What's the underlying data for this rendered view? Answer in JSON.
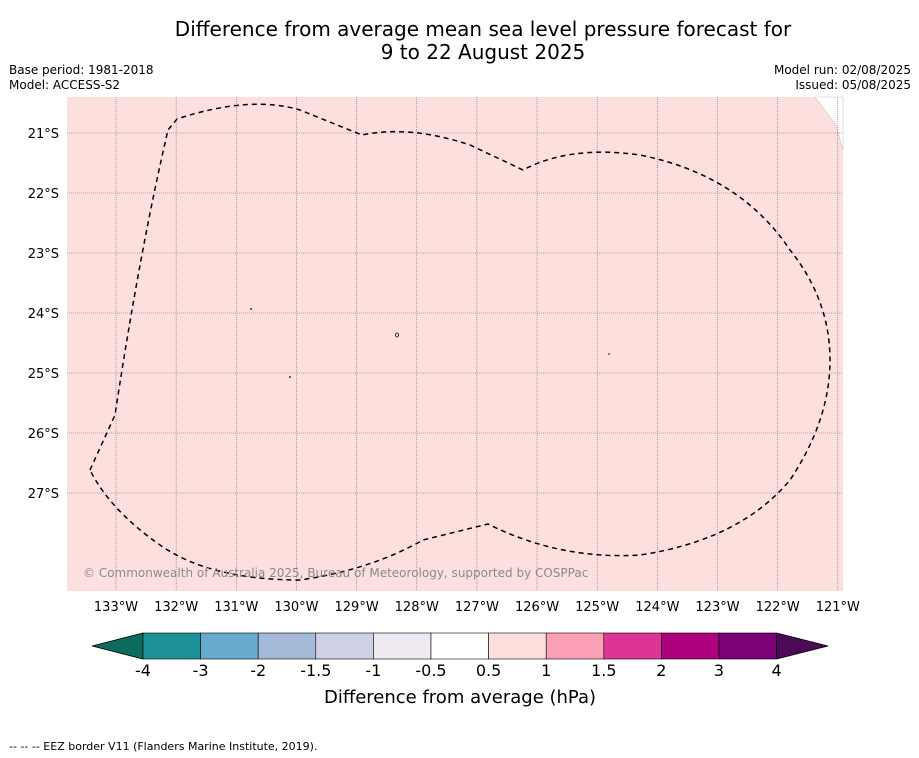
{
  "title": {
    "line1": "Difference from average mean sea level pressure forecast for",
    "line2": "9 to 22 August 2025"
  },
  "meta": {
    "base_period": "Base period: 1981-2018",
    "model": "Model: ACCESS-S2",
    "model_run": "Model run: 02/08/2025",
    "issued": "Issued: 05/08/2025"
  },
  "map": {
    "background_color": "#fde0de",
    "lat_labels": [
      "21°S",
      "22°S",
      "23°S",
      "24°S",
      "25°S",
      "26°S",
      "27°S"
    ],
    "lon_labels": [
      "133°W",
      "132°W",
      "131°W",
      "130°W",
      "129°W",
      "128°W",
      "127°W",
      "126°W",
      "125°W",
      "124°W",
      "123°W",
      "122°W",
      "121°W"
    ],
    "copyright": "© Commonwealth of Australia 2025, Bureau of Meteorology, supported by COSPPac"
  },
  "colorbar": {
    "title": "Difference from average (hPa)",
    "tick_labels": [
      "-4",
      "-3",
      "-2",
      "-1.5",
      "-1",
      "-0.5",
      "0.5",
      "1",
      "1.5",
      "2",
      "3",
      "4"
    ],
    "under_color": "#0c6b5f",
    "over_color": "#4b0a55",
    "colors": [
      "#1b9096",
      "#67aacf",
      "#a5bad9",
      "#cfd1e6",
      "#efeaf2",
      "#ffffff",
      "#fde0de",
      "#fa9fb5",
      "#dd3497",
      "#ae017e",
      "#7a0177"
    ]
  },
  "footer": "-- -- -- EEZ border V11 (Flanders Marine Institute, 2019)."
}
